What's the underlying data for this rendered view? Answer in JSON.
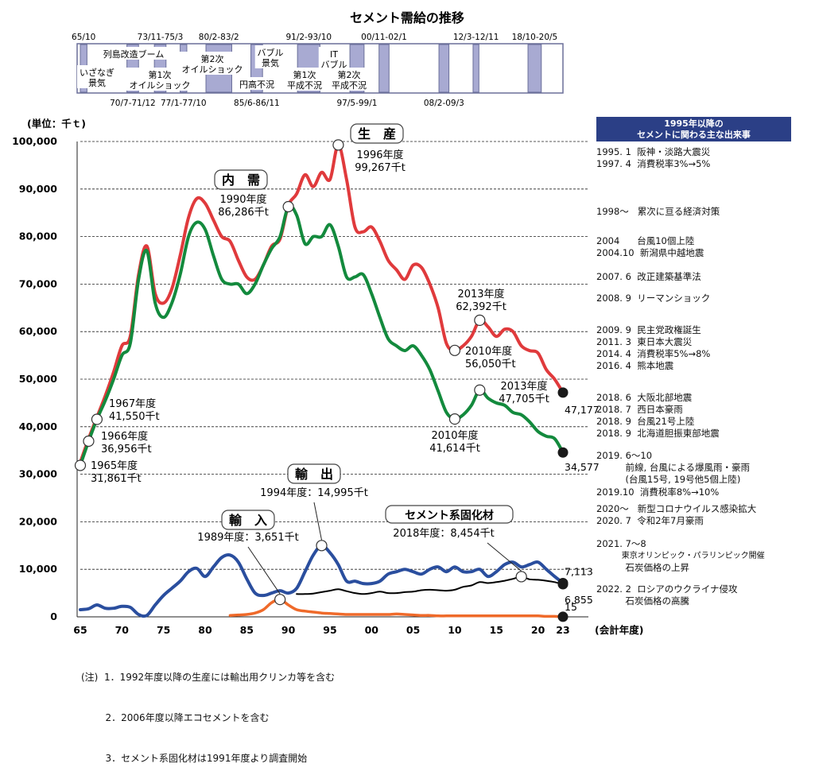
{
  "title": "セメント需給の推移",
  "unit_label": "(単位：千ｔ)",
  "xlabel": "(会計年度)",
  "recessions": [
    {
      "top": "65/10",
      "start": 1965.0,
      "end": 1965.8,
      "text": [
        "いざなぎ",
        "景気"
      ]
    },
    {
      "bottom": "70/7-71/12",
      "start": 1970.6,
      "end": 1972.0
    },
    {
      "top": "73/11-75/3",
      "start": 1973.9,
      "end": 1975.3,
      "text": [
        "第1次",
        "オイルショック"
      ]
    },
    {
      "bottom": "77/1-77/10",
      "start": 1977.0,
      "end": 1977.8
    },
    {
      "top": "80/2-83/2",
      "start": 1980.1,
      "end": 1983.2,
      "text": [
        "第2次",
        "オイルショック"
      ]
    },
    {
      "bottom": "85/6-86/11",
      "start": 1985.5,
      "end": 1986.9,
      "text": [
        "円高不況"
      ]
    },
    {
      "top": "91/2-93/10",
      "start": 1991.1,
      "end": 1993.8,
      "text": [
        "第1次",
        "平成不況"
      ]
    },
    {
      "bottom": "97/5-99/1",
      "start": 1997.4,
      "end": 1999.1,
      "text": [
        "第2次",
        "平成不況"
      ]
    },
    {
      "top": "00/11-02/1",
      "start": 2000.9,
      "end": 2002.1
    },
    {
      "bottom": "08/2-09/3",
      "start": 2008.1,
      "end": 2009.3
    },
    {
      "top": "12/3-12/11",
      "start": 2012.2,
      "end": 2012.9
    },
    {
      "top": "18/10-20/5",
      "start": 2018.8,
      "end": 2020.4
    }
  ],
  "booms": [
    {
      "text": [
        "列島改造ブーム"
      ]
    },
    {
      "text": [
        "バブル",
        "景気"
      ]
    },
    {
      "text": [
        "IT",
        "バブル"
      ]
    }
  ],
  "chart_data": {
    "type": "line",
    "title": "セメント需給の推移",
    "xlabel": "(会計年度)",
    "ylabel": "(単位：千ｔ)",
    "xlim": [
      1965,
      2023
    ],
    "ylim": [
      0,
      100000
    ],
    "x_ticks": [
      "65",
      "70",
      "75",
      "80",
      "85",
      "90",
      "95",
      "00",
      "05",
      "10",
      "15",
      "20",
      "23"
    ],
    "y_ticks": [
      "0",
      "10,000",
      "20,000",
      "30,000",
      "40,000",
      "50,000",
      "60,000",
      "70,000",
      "80,000",
      "90,000",
      "100,000"
    ],
    "grid": "horizontal dashed",
    "series": [
      {
        "name": "生 産",
        "color": "#e03a3c",
        "x": [
          1965,
          1966,
          1967,
          1968,
          1969,
          1970,
          1971,
          1972,
          1973,
          1974,
          1975,
          1976,
          1977,
          1978,
          1979,
          1980,
          1981,
          1982,
          1983,
          1984,
          1985,
          1986,
          1987,
          1988,
          1989,
          1990,
          1991,
          1992,
          1993,
          1994,
          1995,
          1996,
          1997,
          1998,
          1999,
          2000,
          2001,
          2002,
          2003,
          2004,
          2005,
          2006,
          2007,
          2008,
          2009,
          2010,
          2011,
          2012,
          2013,
          2014,
          2015,
          2016,
          2017,
          2018,
          2019,
          2020,
          2021,
          2022,
          2023
        ],
        "values": [
          32500,
          37500,
          42000,
          46500,
          51500,
          57000,
          59000,
          72000,
          78000,
          68000,
          66000,
          69000,
          76000,
          84000,
          88000,
          87000,
          83500,
          80000,
          79000,
          75000,
          71500,
          71000,
          74000,
          78000,
          79500,
          86500,
          89000,
          93000,
          90500,
          93500,
          92000,
          99267,
          92000,
          82000,
          81000,
          82000,
          79000,
          75000,
          73000,
          71000,
          74000,
          73500,
          70000,
          65000,
          57500,
          56050,
          57000,
          59000,
          62392,
          61000,
          59000,
          60500,
          60000,
          57000,
          56000,
          55500,
          52000,
          50000,
          47177
        ]
      },
      {
        "name": "内 需",
        "color": "#138a3d",
        "x": [
          1965,
          1966,
          1967,
          1968,
          1969,
          1970,
          1971,
          1972,
          1973,
          1974,
          1975,
          1976,
          1977,
          1978,
          1979,
          1980,
          1981,
          1982,
          1983,
          1984,
          1985,
          1986,
          1987,
          1988,
          1989,
          1990,
          1991,
          1992,
          1993,
          1994,
          1995,
          1996,
          1997,
          1998,
          1999,
          2000,
          2001,
          2002,
          2003,
          2004,
          2005,
          2006,
          2007,
          2008,
          2009,
          2010,
          2011,
          2012,
          2013,
          2014,
          2015,
          2016,
          2017,
          2018,
          2019,
          2020,
          2021,
          2022,
          2023
        ],
        "values": [
          31861,
          36956,
          41550,
          45500,
          50000,
          55000,
          57500,
          71000,
          77000,
          66000,
          63000,
          66000,
          72000,
          80000,
          83000,
          81500,
          76000,
          71000,
          70000,
          70000,
          68000,
          70000,
          74000,
          77500,
          80000,
          86286,
          84500,
          78500,
          80000,
          80000,
          82500,
          78000,
          71500,
          71500,
          72000,
          68000,
          63000,
          58500,
          57000,
          56000,
          57000,
          55000,
          52000,
          47500,
          43000,
          41614,
          42500,
          44500,
          47705,
          46000,
          45000,
          44500,
          43000,
          42500,
          41000,
          39000,
          38000,
          37500,
          34577
        ]
      },
      {
        "name": "輸 出",
        "color": "#2a4e9e",
        "x": [
          1965,
          1966,
          1967,
          1968,
          1969,
          1970,
          1971,
          1972,
          1973,
          1974,
          1975,
          1976,
          1977,
          1978,
          1979,
          1980,
          1981,
          1982,
          1983,
          1984,
          1985,
          1986,
          1987,
          1988,
          1989,
          1990,
          1991,
          1992,
          1993,
          1994,
          1995,
          1996,
          1997,
          1998,
          1999,
          2000,
          2001,
          2002,
          2003,
          2004,
          2005,
          2006,
          2007,
          2008,
          2009,
          2010,
          2011,
          2012,
          2013,
          2014,
          2015,
          2016,
          2017,
          2018,
          2019,
          2020,
          2021,
          2022,
          2023
        ],
        "values": [
          1500,
          1700,
          2500,
          1800,
          1800,
          2200,
          2000,
          500,
          300,
          2500,
          4500,
          6000,
          7500,
          9500,
          10200,
          8500,
          10500,
          12500,
          13000,
          11500,
          8000,
          5000,
          4500,
          5000,
          5500,
          5000,
          6000,
          9500,
          13000,
          14995,
          13500,
          11000,
          7500,
          7500,
          7000,
          7000,
          7500,
          9000,
          9500,
          10000,
          9500,
          9000,
          10000,
          10500,
          9500,
          10500,
          9500,
          9500,
          10000,
          8500,
          9500,
          11000,
          11500,
          10500,
          11000,
          11500,
          10000,
          8500,
          7113
        ]
      },
      {
        "name": "輸 入",
        "color": "#ef6a2a",
        "x": [
          1983,
          1984,
          1985,
          1986,
          1987,
          1988,
          1989,
          1990,
          1991,
          1992,
          1993,
          1994,
          1995,
          1996,
          1997,
          1998,
          1999,
          2000,
          2001,
          2002,
          2003,
          2004,
          2005,
          2006,
          2007,
          2008,
          2009,
          2010,
          2011,
          2012,
          2013,
          2014,
          2015,
          2016,
          2017,
          2018,
          2019,
          2020,
          2021,
          2022,
          2023
        ],
        "values": [
          300,
          400,
          500,
          800,
          1500,
          3000,
          3651,
          2500,
          1500,
          1200,
          1000,
          800,
          700,
          600,
          500,
          500,
          500,
          500,
          500,
          500,
          600,
          500,
          400,
          300,
          300,
          200,
          200,
          200,
          200,
          200,
          200,
          200,
          200,
          200,
          200,
          200,
          200,
          200,
          100,
          100,
          15
        ]
      },
      {
        "name": "セメント系固化材",
        "color": "#000000",
        "x": [
          1991,
          1992,
          1993,
          1994,
          1995,
          1996,
          1997,
          1998,
          1999,
          2000,
          2001,
          2002,
          2003,
          2004,
          2005,
          2006,
          2007,
          2008,
          2009,
          2010,
          2011,
          2012,
          2013,
          2014,
          2015,
          2016,
          2017,
          2018,
          2019,
          2020,
          2021,
          2022,
          2023
        ],
        "values": [
          4800,
          4800,
          4900,
          5200,
          5500,
          5800,
          5400,
          5000,
          4800,
          5000,
          5300,
          5000,
          5000,
          5200,
          5300,
          5600,
          5700,
          5600,
          5500,
          5700,
          6300,
          6600,
          7300,
          7100,
          7300,
          7600,
          8000,
          8454,
          7900,
          7800,
          7600,
          7300,
          6855
        ]
      }
    ],
    "series_labels": [
      {
        "series": 0,
        "text": "生　産"
      },
      {
        "series": 1,
        "text": "内　需"
      },
      {
        "series": 2,
        "text": "輸　出"
      },
      {
        "series": 3,
        "text": "輸　入"
      },
      {
        "series": 4,
        "text": "セメント系固化材"
      }
    ],
    "annotations": [
      {
        "year": 1965,
        "value": 31861,
        "series": 1,
        "lines": [
          "1965年度",
          "31,861千t"
        ]
      },
      {
        "year": 1966,
        "value": 36956,
        "series": 1,
        "lines": [
          "1966年度",
          "36,956千t"
        ]
      },
      {
        "year": 1967,
        "value": 41550,
        "series": 1,
        "lines": [
          "1967年度",
          "41,550千t"
        ]
      },
      {
        "year": 1990,
        "value": 86286,
        "series": 1,
        "lines": [
          "1990年度",
          "86,286千t"
        ]
      },
      {
        "year": 1996,
        "value": 99267,
        "series": 0,
        "lines": [
          "1996年度",
          "99,267千t"
        ]
      },
      {
        "year": 2010,
        "value": 56050,
        "series": 0,
        "lines": [
          "2010年度",
          "56,050千t"
        ]
      },
      {
        "year": 2013,
        "value": 62392,
        "series": 0,
        "lines": [
          "2013年度",
          "62,392千t"
        ]
      },
      {
        "year": 2010,
        "value": 41614,
        "series": 1,
        "lines": [
          "2010年度",
          "41,614千t"
        ]
      },
      {
        "year": 2013,
        "value": 47705,
        "series": 1,
        "lines": [
          "2013年度",
          "47,705千t"
        ]
      },
      {
        "year": 1994,
        "value": 14995,
        "series": 2,
        "lines": [
          "1994年度：14,995千t"
        ]
      },
      {
        "year": 1989,
        "value": 3651,
        "series": 3,
        "lines": [
          "1989年度：3,651千t"
        ]
      },
      {
        "year": 2018,
        "value": 8454,
        "series": 4,
        "lines": [
          "2018年度：8,454千t"
        ]
      }
    ],
    "end_values": [
      {
        "series": 0,
        "text": "47,177"
      },
      {
        "series": 1,
        "text": "34,577"
      },
      {
        "series": 2,
        "text": "7,113"
      },
      {
        "series": 4,
        "text": "6,855"
      },
      {
        "series": 3,
        "text": "15"
      }
    ]
  },
  "events_header": [
    "1995年以降の",
    "セメントに関わる主な出来事"
  ],
  "events": [
    "1995. 1  阪神・淡路大震災",
    "1997. 4  消費税率3%→5%",
    "1998～   累次に亘る経済対策",
    "2004      台風10個上陸",
    "2004.10  新潟県中越地震",
    "2007. 6  改正建築基準法",
    "2008. 9  リーマンショック",
    "2009. 9  民主党政権誕生",
    "2011. 3  東日本大震災",
    "2014. 4  消費税率5%→8%",
    "2016. 4  熊本地震",
    "2018. 6  大阪北部地震",
    "2018. 7  西日本豪雨",
    "2018. 9  台風21号上陸",
    "2018. 9  北海道胆振東部地震",
    "2019. 6～10",
    "          前線, 台風による爆風雨・豪雨",
    "          (台風15号, 19号他5個上陸)",
    "2019.10  消費税率8%→10%",
    "2020～   新型コロナウイルス感染拡大",
    "2020. 7  令和2年7月豪雨",
    "2021. 7～8",
    "          東京オリンピック・パラリンピック開催",
    "          石炭価格の上昇",
    "2022. 2  ロシアのウクライナ侵攻",
    "          石炭価格の高騰"
  ],
  "notes": [
    "(注)  1．1992年度以降の生産には輸出用クリンカ等を含む",
    "        2．2006年度以降エコセメントを含む",
    "        3．セメント系固化材は1991年度より調査開始"
  ]
}
